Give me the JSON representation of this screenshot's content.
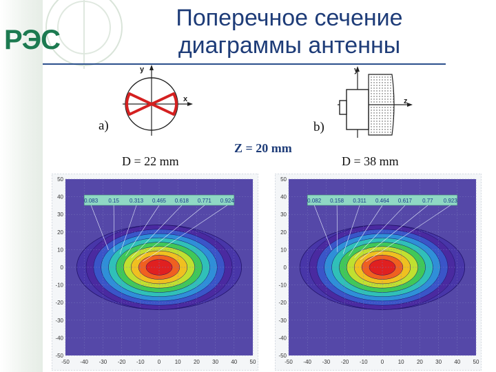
{
  "logo": {
    "text": "РЭС"
  },
  "title": {
    "line1": "Поперечное сечение",
    "line2": "диаграммы антенны"
  },
  "diagram_a": {
    "label": "a)",
    "axis_y": "y",
    "axis_x": "x"
  },
  "diagram_b": {
    "label": "b)",
    "axis_y": "y",
    "axis_z": "z"
  },
  "captions": {
    "left": "D = 22 mm",
    "middle": "Z = 20 mm",
    "right": "D = 38 mm"
  },
  "chart_data": [
    {
      "type": "heatmap",
      "title": "D = 22 mm",
      "xlim": [
        -50,
        50
      ],
      "ylim": [
        -50,
        50
      ],
      "x_ticks": [
        "-50",
        "-40",
        "-30",
        "-20",
        "-10",
        "0",
        "10",
        "20",
        "30",
        "40",
        "50"
      ],
      "y_ticks": [
        "50",
        "40",
        "30",
        "20",
        "10",
        "0",
        "-10",
        "-20",
        "-30",
        "-40",
        "-50"
      ],
      "contour_levels": [
        "0.083",
        "0.15",
        "0.313",
        "0.465",
        "0.618",
        "0.771",
        "0.924"
      ]
    },
    {
      "type": "heatmap",
      "title": "D = 38 mm",
      "xlim": [
        -50,
        50
      ],
      "ylim": [
        -50,
        50
      ],
      "x_ticks": [
        "-50",
        "-40",
        "-30",
        "-20",
        "-10",
        "0",
        "10",
        "20",
        "30",
        "40",
        "50"
      ],
      "y_ticks": [
        "50",
        "40",
        "30",
        "20",
        "10",
        "0",
        "-10",
        "-20",
        "-30",
        "-40",
        "-50"
      ],
      "contour_levels": [
        "0.082",
        "0.158",
        "0.311",
        "0.464",
        "0.617",
        "0.77",
        "0.923"
      ]
    }
  ],
  "colors": {
    "title": "#1e3c78",
    "background_field": "#5548a8",
    "ramp": [
      "#4a2aa0",
      "#3a55c8",
      "#2f8fd8",
      "#30c0b8",
      "#40c858",
      "#c0e030",
      "#f0c020",
      "#f06020",
      "#e02020"
    ]
  }
}
